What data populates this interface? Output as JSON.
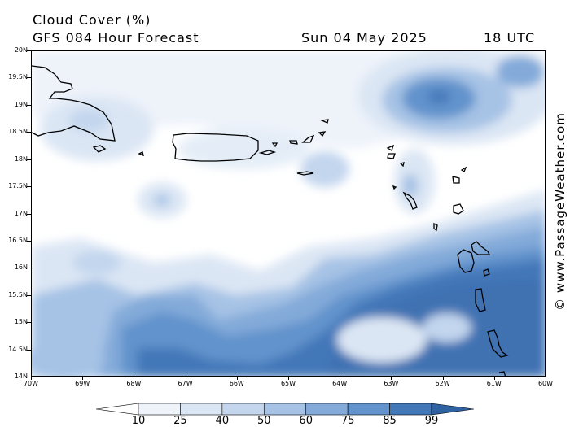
{
  "header": {
    "title": "Cloud Cover (%)",
    "subtitle": "GFS 084 Hour Forecast",
    "date": "Sun 04 May 2025",
    "time": "18 UTC"
  },
  "watermark": "© www.PassageWeather.com",
  "axes": {
    "lat_labels": [
      "20N",
      "19.5N",
      "19N",
      "18.5N",
      "18N",
      "17.5N",
      "17N",
      "16.5N",
      "16N",
      "15.5N",
      "15N",
      "14.5N",
      "14N"
    ],
    "lon_labels": [
      "70W",
      "69W",
      "68W",
      "67W",
      "66W",
      "65W",
      "64W",
      "63W",
      "62W",
      "61W",
      "60W"
    ]
  },
  "legend": {
    "labels": [
      "10",
      "25",
      "40",
      "50",
      "60",
      "75",
      "85",
      "99"
    ],
    "colors": [
      "#ffffff",
      "#eef3fa",
      "#dbe6f4",
      "#c3d6ee",
      "#a6c2e5",
      "#83aad9",
      "#6293cc",
      "#4277b8",
      "#2f62a3"
    ]
  }
}
